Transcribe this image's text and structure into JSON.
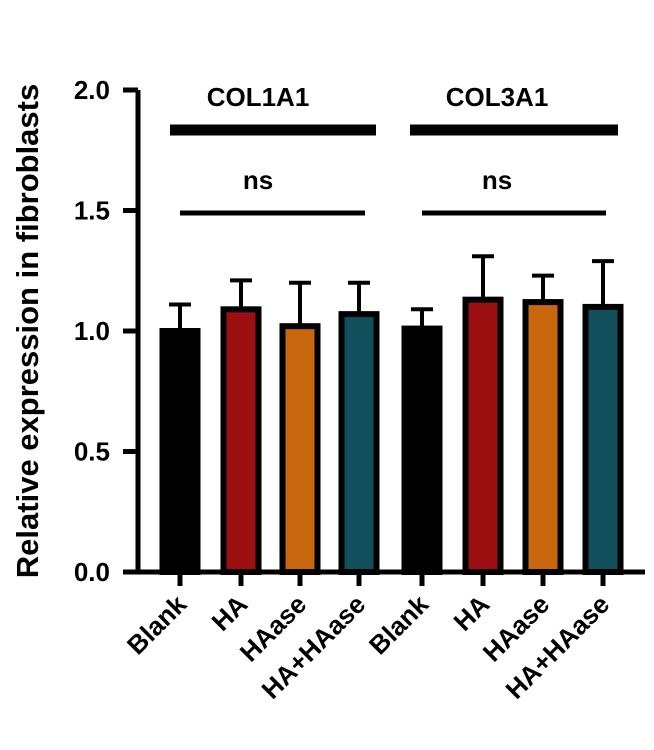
{
  "chart_data": {
    "type": "bar",
    "title": "",
    "xlabel": "",
    "ylabel": "Relative expression in fibroblasts",
    "ylim": [
      0,
      2.0
    ],
    "yticks": [
      "0.0",
      "0.5",
      "1.0",
      "1.5",
      "2.0"
    ],
    "grid": false,
    "categories": [
      "Blank",
      "HA",
      "HAase",
      "HA+HAase",
      "Blank",
      "HA",
      "HAase",
      "HA+HAase"
    ],
    "values": [
      1.0,
      1.09,
      1.02,
      1.07,
      1.01,
      1.13,
      1.12,
      1.1
    ],
    "errors": [
      0.11,
      0.12,
      0.18,
      0.13,
      0.08,
      0.18,
      0.11,
      0.19
    ],
    "colors": [
      "#000000",
      "#9b0f11",
      "#c8670d",
      "#124f5c",
      "#000000",
      "#9b0f11",
      "#c8670d",
      "#124f5c"
    ],
    "groups": [
      {
        "name": "COL1A1",
        "significance": "ns",
        "first": 0,
        "last": 3
      },
      {
        "name": "COL3A1",
        "significance": "ns",
        "first": 4,
        "last": 7
      }
    ]
  }
}
